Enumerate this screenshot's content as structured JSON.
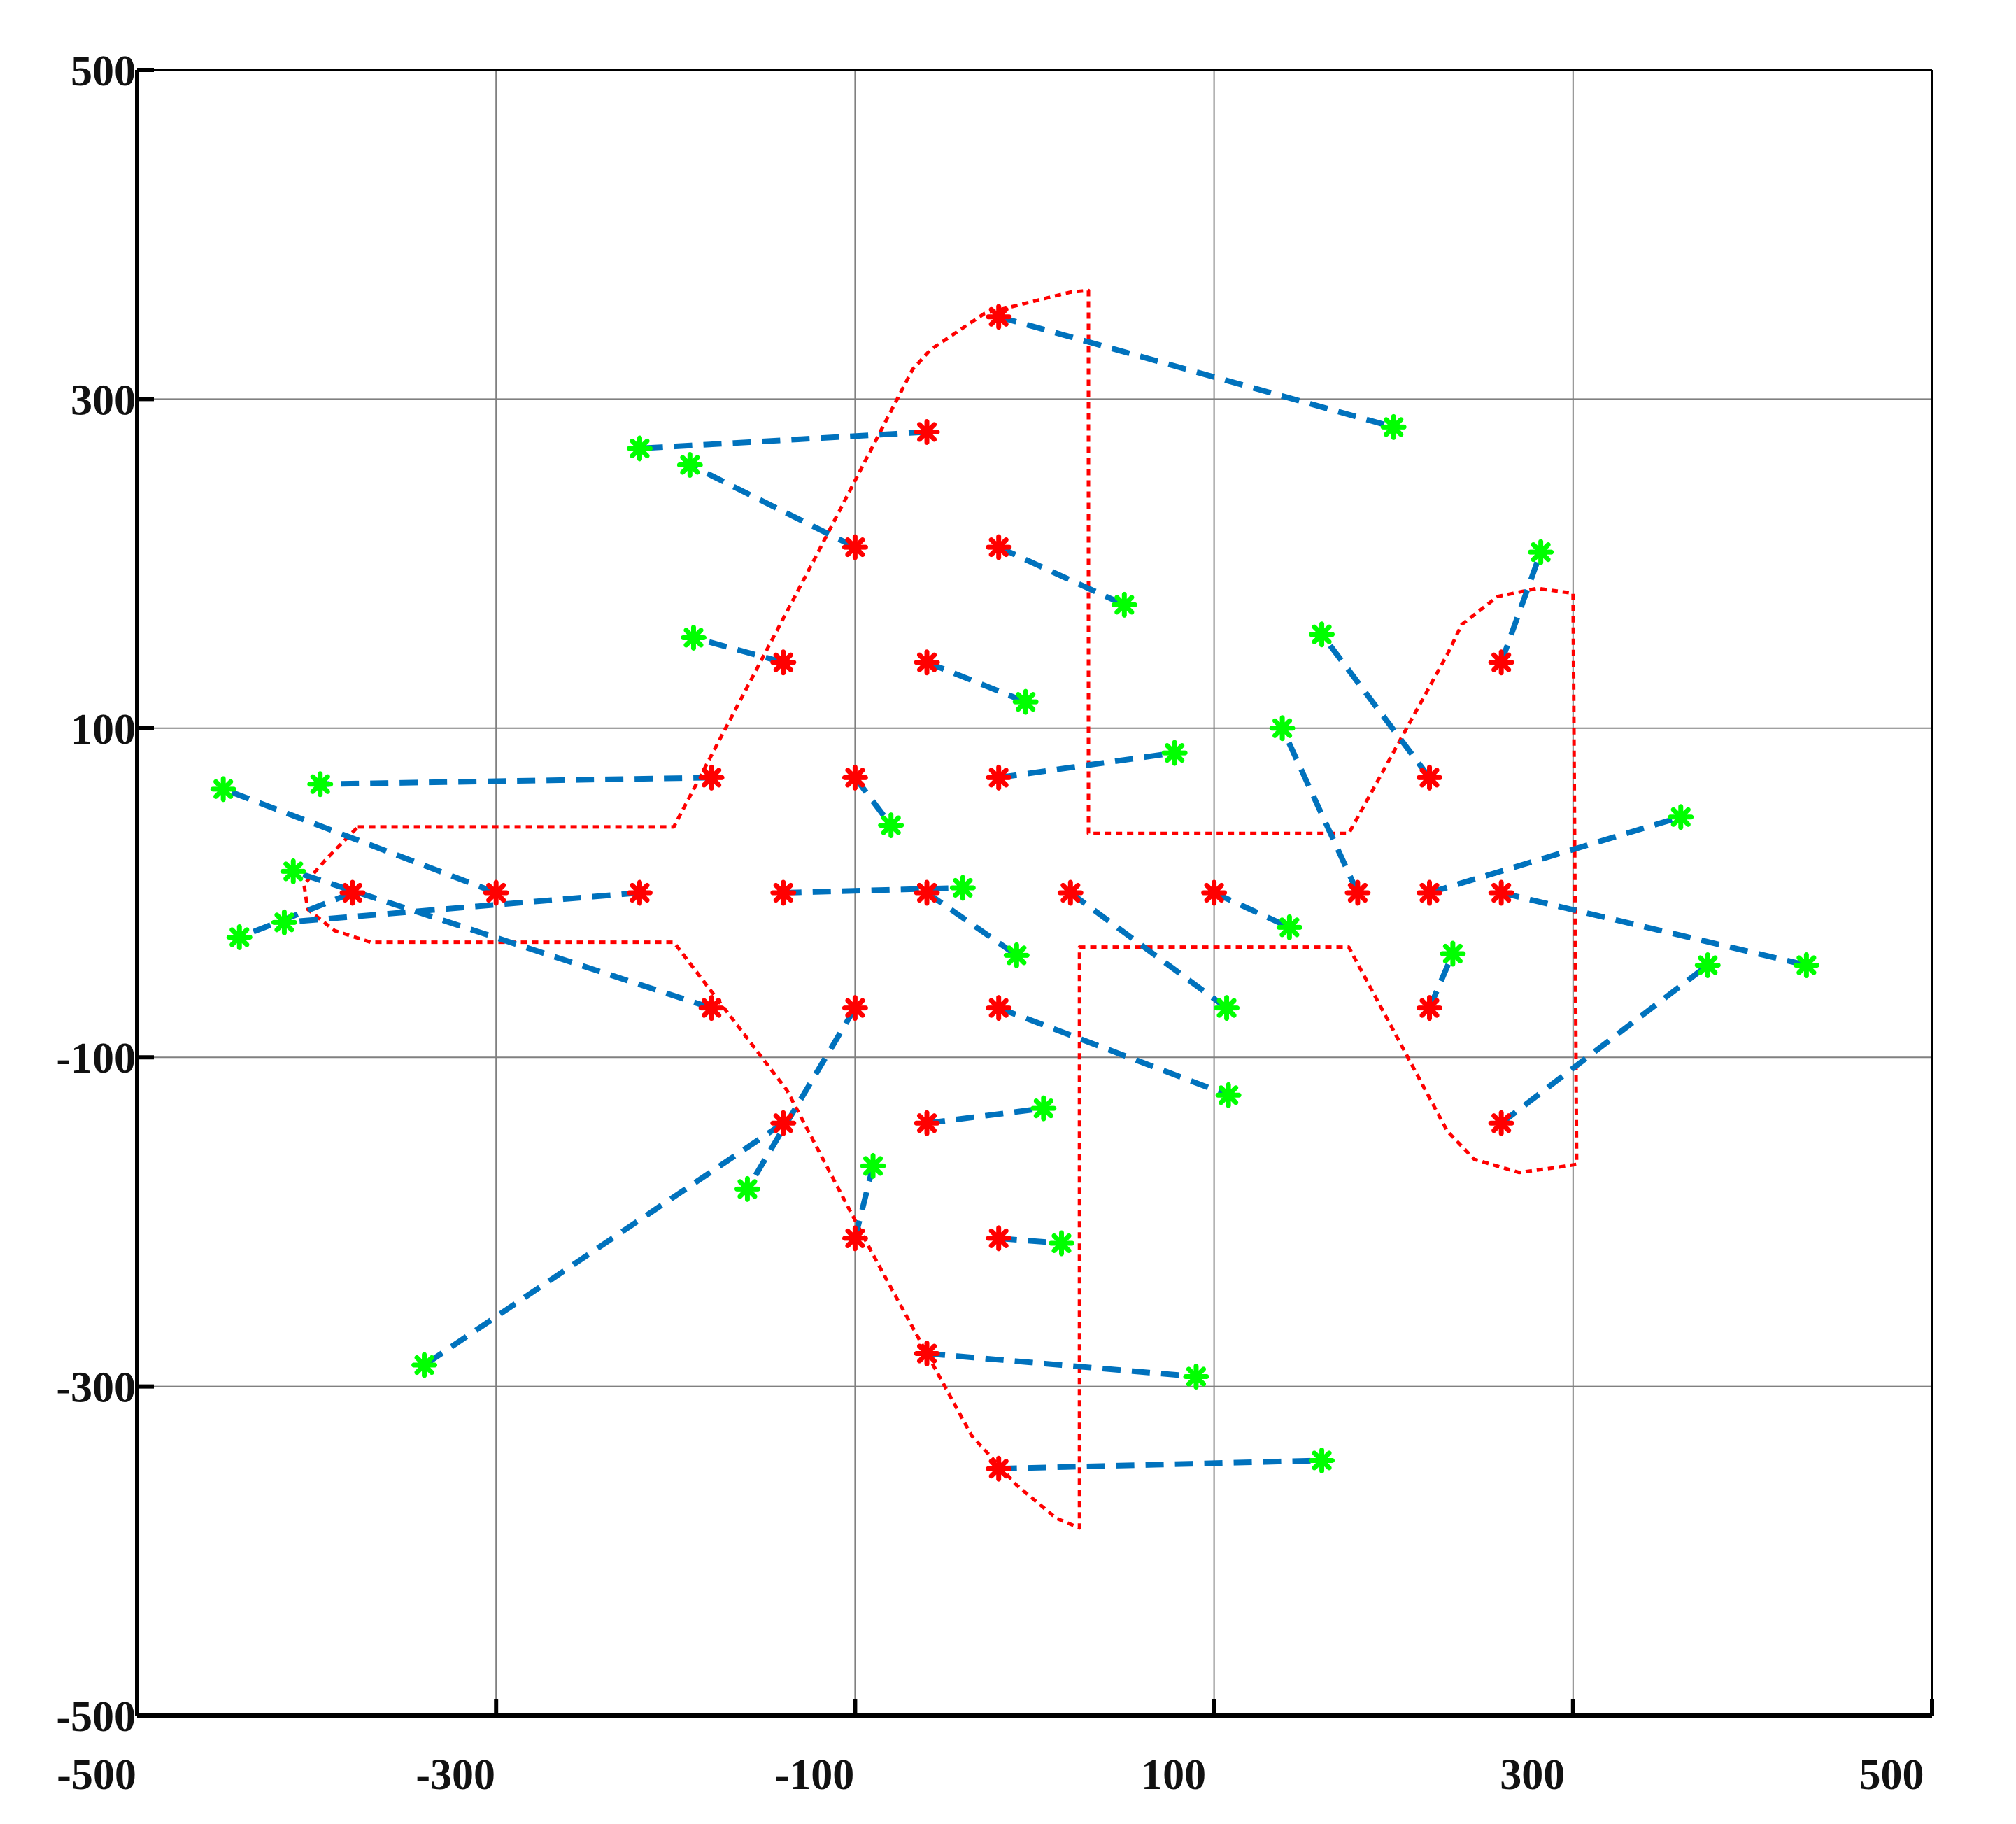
{
  "chart_data": {
    "type": "scatter",
    "title": "",
    "xlabel": "",
    "ylabel": "",
    "xlim": [
      -500,
      500
    ],
    "ylim": [
      -500,
      500
    ],
    "grid": true,
    "legend": "none",
    "x_ticks": [
      "-500",
      "-300",
      "-100",
      "100",
      "300",
      "500"
    ],
    "y_ticks": [
      "500",
      "300",
      "100",
      "-100",
      "-300",
      "-500"
    ],
    "tick_values": [
      -500,
      -300,
      -100,
      100,
      300,
      500
    ],
    "colors": {
      "outline": "#ff0000",
      "red_marker": "#ff0000",
      "green_marker": "#00ff00",
      "link": "#0072bd",
      "grid": "#808080",
      "axes": "#000000"
    },
    "outline": [
      [
        -377,
        40
      ],
      [
        -317,
        40
      ],
      [
        -201,
        40
      ],
      [
        -123,
        202
      ],
      [
        -68,
        318
      ],
      [
        -58,
        330
      ],
      [
        -28,
        352
      ],
      [
        20,
        365
      ],
      [
        30,
        366
      ],
      [
        30,
        36
      ],
      [
        95,
        36
      ],
      [
        175,
        36
      ],
      [
        230,
        145
      ],
      [
        238,
        163
      ],
      [
        258,
        180
      ],
      [
        280,
        185
      ],
      [
        300,
        182
      ],
      [
        302,
        -165
      ],
      [
        290,
        -167
      ],
      [
        270,
        -170
      ],
      [
        245,
        -162
      ],
      [
        230,
        -145
      ],
      [
        175,
        -33
      ],
      [
        95,
        -33
      ],
      [
        25,
        -33
      ],
      [
        25,
        -386
      ],
      [
        12,
        -380
      ],
      [
        -10,
        -360
      ],
      [
        -35,
        -330
      ],
      [
        -90,
        -220
      ],
      [
        -138,
        -120
      ],
      [
        -201,
        -30
      ],
      [
        -317,
        -30
      ],
      [
        -370,
        -30
      ],
      [
        -390,
        -23
      ],
      [
        -405,
        -10
      ],
      [
        -407,
        5
      ],
      [
        -395,
        20
      ]
    ],
    "pairs": [
      {
        "red": [
          -380,
          0
        ],
        "green": [
          -443,
          -27
        ]
      },
      {
        "red": [
          -300,
          0
        ],
        "green": [
          -452,
          63
        ]
      },
      {
        "red": [
          -220,
          0
        ],
        "green": [
          -418,
          -18
        ]
      },
      {
        "red": [
          -180,
          70
        ],
        "green": [
          -398,
          66
        ]
      },
      {
        "red": [
          -180,
          -70
        ],
        "green": [
          -413,
          13
        ]
      },
      {
        "red": [
          -140,
          140
        ],
        "green": [
          -190,
          155
        ]
      },
      {
        "red": [
          -140,
          0
        ],
        "green": [
          -40,
          3
        ]
      },
      {
        "red": [
          -140,
          -140
        ],
        "green": [
          -340,
          -287
        ]
      },
      {
        "red": [
          -100,
          210
        ],
        "green": [
          -192,
          260
        ]
      },
      {
        "red": [
          -100,
          70
        ],
        "green": [
          -80,
          41
        ]
      },
      {
        "red": [
          -100,
          -70
        ],
        "green": [
          -160,
          -180
        ]
      },
      {
        "red": [
          -100,
          -210
        ],
        "green": [
          -90,
          -166
        ]
      },
      {
        "red": [
          -60,
          280
        ],
        "green": [
          -220,
          270
        ]
      },
      {
        "red": [
          -60,
          140
        ],
        "green": [
          -5,
          116
        ]
      },
      {
        "red": [
          -60,
          0
        ],
        "green": [
          -10,
          -38
        ]
      },
      {
        "red": [
          -60,
          -140
        ],
        "green": [
          5,
          -131
        ]
      },
      {
        "red": [
          -60,
          -280
        ],
        "green": [
          90,
          -294
        ]
      },
      {
        "red": [
          -20,
          350
        ],
        "green": [
          200,
          283
        ]
      },
      {
        "red": [
          -20,
          210
        ],
        "green": [
          50,
          175
        ]
      },
      {
        "red": [
          -20,
          70
        ],
        "green": [
          78,
          85
        ]
      },
      {
        "red": [
          -20,
          -70
        ],
        "green": [
          108,
          -123
        ]
      },
      {
        "red": [
          -20,
          -210
        ],
        "green": [
          15,
          -213
        ]
      },
      {
        "red": [
          -20,
          -350
        ],
        "green": [
          160,
          -345
        ]
      },
      {
        "red": [
          20,
          0
        ],
        "green": [
          107,
          -70
        ]
      },
      {
        "red": [
          100,
          0
        ],
        "green": [
          142,
          -21
        ]
      },
      {
        "red": [
          180,
          0
        ],
        "green": [
          138,
          100
        ]
      },
      {
        "red": [
          220,
          70
        ],
        "green": [
          160,
          157
        ]
      },
      {
        "red": [
          220,
          0
        ],
        "green": [
          360,
          46
        ]
      },
      {
        "red": [
          220,
          -70
        ],
        "green": [
          233,
          -37
        ]
      },
      {
        "red": [
          260,
          140
        ],
        "green": [
          282,
          207
        ]
      },
      {
        "red": [
          260,
          0
        ],
        "green": [
          430,
          -44
        ]
      },
      {
        "red": [
          260,
          -140
        ],
        "green": [
          375,
          -44
        ]
      }
    ]
  }
}
